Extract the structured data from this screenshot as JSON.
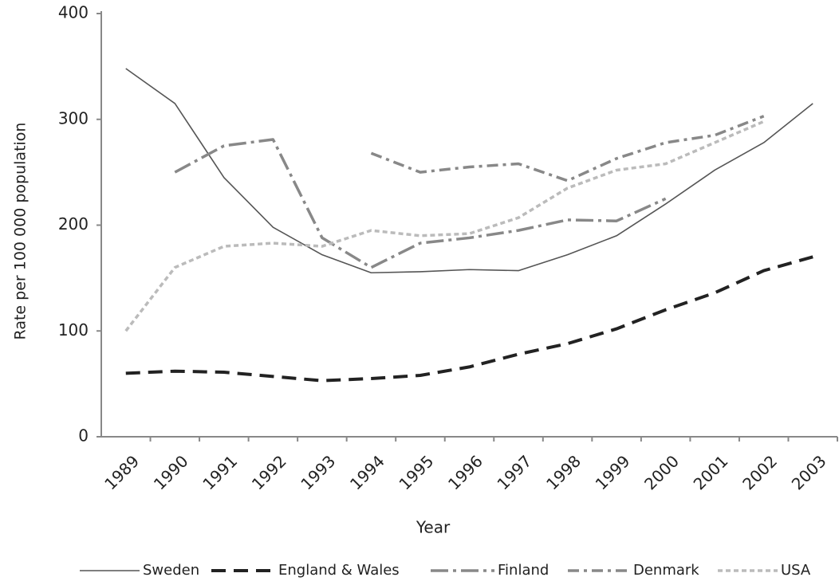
{
  "chart_data": {
    "type": "line",
    "xlabel": "Year",
    "ylabel": "Rate per 100 000 population",
    "categories": [
      "1989",
      "1990",
      "1991",
      "1992",
      "1993",
      "1994",
      "1995",
      "1996",
      "1997",
      "1998",
      "1999",
      "2000",
      "2001",
      "2002",
      "2003"
    ],
    "series": [
      {
        "name": "Sweden",
        "color": "#555555",
        "values": [
          348,
          315,
          245,
          198,
          172,
          155,
          156,
          158,
          157,
          172,
          190,
          220,
          252,
          278,
          315
        ]
      },
      {
        "name": "England & Wales",
        "color": "#222222",
        "values": [
          60,
          62,
          61,
          57,
          53,
          55,
          58,
          66,
          78,
          88,
          102,
          120,
          136,
          157,
          170
        ]
      },
      {
        "name": "Finland",
        "color": "#888888",
        "values": [
          null,
          250,
          275,
          281,
          188,
          160,
          183,
          188,
          195,
          205,
          204,
          225,
          null,
          null,
          null
        ]
      },
      {
        "name": "Denmark",
        "color": "#888888",
        "values": [
          null,
          null,
          null,
          null,
          null,
          268,
          250,
          255,
          258,
          242,
          263,
          278,
          285,
          303,
          null
        ]
      },
      {
        "name": "USA",
        "color": "#bbbbbb",
        "values": [
          100,
          160,
          180,
          183,
          180,
          195,
          190,
          192,
          207,
          235,
          252,
          258,
          278,
          298,
          null
        ]
      }
    ],
    "ylim": [
      0,
      400
    ],
    "yticks": [
      0,
      100,
      200,
      300,
      400
    ],
    "grid": false
  }
}
